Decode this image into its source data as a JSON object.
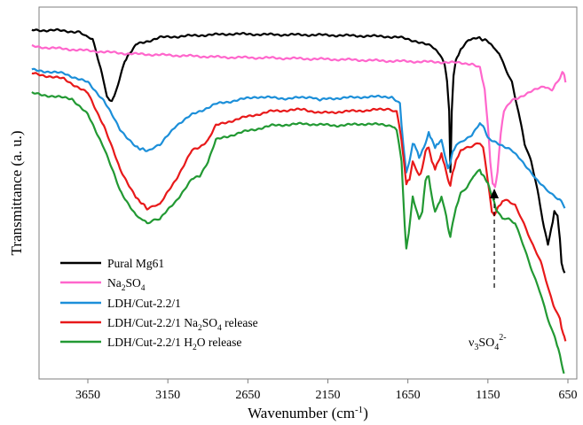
{
  "chart_data": {
    "type": "line",
    "title": "",
    "xlabel": "Wavenumber (cm⁻¹)",
    "ylabel": "Transmittance (a. u.)",
    "x_reversed": true,
    "xlim": [
      4000,
      600
    ],
    "ylim": [
      0,
      1
    ],
    "y_ticks_shown": false,
    "grid": false,
    "x_ticks": [
      3650,
      3150,
      2650,
      2150,
      1650,
      1150,
      650
    ],
    "legend_position": "bottom-left",
    "annotations": [
      {
        "text": "ν3SO42-",
        "type": "label"
      },
      {
        "type": "dashed-arrow",
        "x": 1110
      }
    ],
    "series": [
      {
        "name": "Pural Mg61",
        "color": "#000000",
        "points": [
          [
            4000,
            0.965
          ],
          [
            3850,
            0.965
          ],
          [
            3700,
            0.96
          ],
          [
            3620,
            0.94
          ],
          [
            3570,
            0.86
          ],
          [
            3530,
            0.78
          ],
          [
            3500,
            0.765
          ],
          [
            3470,
            0.8
          ],
          [
            3420,
            0.88
          ],
          [
            3350,
            0.925
          ],
          [
            3200,
            0.945
          ],
          [
            3000,
            0.95
          ],
          [
            2750,
            0.955
          ],
          [
            2500,
            0.953
          ],
          [
            2200,
            0.952
          ],
          [
            2000,
            0.95
          ],
          [
            1800,
            0.948
          ],
          [
            1700,
            0.945
          ],
          [
            1600,
            0.935
          ],
          [
            1500,
            0.92
          ],
          [
            1450,
            0.9
          ],
          [
            1420,
            0.87
          ],
          [
            1405,
            0.82
          ],
          [
            1392,
            0.74
          ],
          [
            1384,
            0.57
          ],
          [
            1376,
            0.74
          ],
          [
            1365,
            0.84
          ],
          [
            1350,
            0.88
          ],
          [
            1320,
            0.91
          ],
          [
            1270,
            0.94
          ],
          [
            1220,
            0.945
          ],
          [
            1150,
            0.935
          ],
          [
            1080,
            0.9
          ],
          [
            1000,
            0.82
          ],
          [
            950,
            0.72
          ],
          [
            920,
            0.65
          ],
          [
            880,
            0.6
          ],
          [
            840,
            0.52
          ],
          [
            800,
            0.42
          ],
          [
            775,
            0.37
          ],
          [
            755,
            0.41
          ],
          [
            735,
            0.46
          ],
          [
            715,
            0.45
          ],
          [
            700,
            0.38
          ],
          [
            690,
            0.32
          ],
          [
            680,
            0.3
          ],
          [
            670,
            0.29
          ]
        ]
      },
      {
        "name": "Na2SO4",
        "color": "#ff66cc",
        "points": [
          [
            4000,
            0.92
          ],
          [
            3700,
            0.91
          ],
          [
            3400,
            0.9
          ],
          [
            3100,
            0.895
          ],
          [
            2800,
            0.89
          ],
          [
            2500,
            0.888
          ],
          [
            2200,
            0.885
          ],
          [
            2000,
            0.883
          ],
          [
            1800,
            0.88
          ],
          [
            1600,
            0.878
          ],
          [
            1400,
            0.876
          ],
          [
            1250,
            0.872
          ],
          [
            1200,
            0.86
          ],
          [
            1170,
            0.8
          ],
          [
            1150,
            0.7
          ],
          [
            1135,
            0.6
          ],
          [
            1120,
            0.54
          ],
          [
            1105,
            0.53
          ],
          [
            1090,
            0.57
          ],
          [
            1070,
            0.68
          ],
          [
            1050,
            0.74
          ],
          [
            1000,
            0.77
          ],
          [
            950,
            0.78
          ],
          [
            900,
            0.79
          ],
          [
            850,
            0.8
          ],
          [
            800,
            0.81
          ],
          [
            750,
            0.8
          ],
          [
            720,
            0.82
          ],
          [
            700,
            0.83
          ],
          [
            685,
            0.85
          ],
          [
            672,
            0.84
          ],
          [
            665,
            0.82
          ]
        ]
      },
      {
        "name": "LDH/Cut-2.2/1",
        "color": "#1c8fd9",
        "points": [
          [
            4000,
            0.855
          ],
          [
            3800,
            0.845
          ],
          [
            3650,
            0.82
          ],
          [
            3550,
            0.77
          ],
          [
            3450,
            0.69
          ],
          [
            3350,
            0.64
          ],
          [
            3280,
            0.63
          ],
          [
            3200,
            0.645
          ],
          [
            3100,
            0.7
          ],
          [
            3000,
            0.73
          ],
          [
            2950,
            0.74
          ],
          [
            2900,
            0.75
          ],
          [
            2850,
            0.76
          ],
          [
            2600,
            0.78
          ],
          [
            2400,
            0.775
          ],
          [
            2250,
            0.78
          ],
          [
            2200,
            0.77
          ],
          [
            2150,
            0.775
          ],
          [
            1900,
            0.78
          ],
          [
            1750,
            0.78
          ],
          [
            1700,
            0.76
          ],
          [
            1680,
            0.65
          ],
          [
            1660,
            0.57
          ],
          [
            1640,
            0.6
          ],
          [
            1620,
            0.65
          ],
          [
            1600,
            0.64
          ],
          [
            1580,
            0.61
          ],
          [
            1560,
            0.63
          ],
          [
            1540,
            0.65
          ],
          [
            1520,
            0.68
          ],
          [
            1500,
            0.66
          ],
          [
            1480,
            0.64
          ],
          [
            1460,
            0.65
          ],
          [
            1440,
            0.66
          ],
          [
            1420,
            0.62
          ],
          [
            1400,
            0.58
          ],
          [
            1384,
            0.6
          ],
          [
            1370,
            0.63
          ],
          [
            1340,
            0.65
          ],
          [
            1300,
            0.66
          ],
          [
            1250,
            0.675
          ],
          [
            1200,
            0.705
          ],
          [
            1180,
            0.7
          ],
          [
            1150,
            0.665
          ],
          [
            1100,
            0.655
          ],
          [
            1050,
            0.64
          ],
          [
            1000,
            0.63
          ],
          [
            950,
            0.61
          ],
          [
            900,
            0.58
          ],
          [
            850,
            0.55
          ],
          [
            800,
            0.53
          ],
          [
            760,
            0.51
          ],
          [
            720,
            0.5
          ],
          [
            690,
            0.49
          ],
          [
            670,
            0.47
          ]
        ]
      },
      {
        "name": "LDH/Cut-2.2/1 Na2SO4 release",
        "color": "#e8191a",
        "points": [
          [
            4000,
            0.845
          ],
          [
            3800,
            0.83
          ],
          [
            3650,
            0.79
          ],
          [
            3550,
            0.7
          ],
          [
            3450,
            0.58
          ],
          [
            3350,
            0.5
          ],
          [
            3280,
            0.47
          ],
          [
            3200,
            0.48
          ],
          [
            3100,
            0.55
          ],
          [
            3000,
            0.63
          ],
          [
            2950,
            0.64
          ],
          [
            2900,
            0.66
          ],
          [
            2850,
            0.7
          ],
          [
            2700,
            0.72
          ],
          [
            2500,
            0.74
          ],
          [
            2300,
            0.745
          ],
          [
            2200,
            0.735
          ],
          [
            2000,
            0.74
          ],
          [
            1800,
            0.745
          ],
          [
            1720,
            0.74
          ],
          [
            1690,
            0.66
          ],
          [
            1660,
            0.54
          ],
          [
            1640,
            0.55
          ],
          [
            1620,
            0.6
          ],
          [
            1600,
            0.58
          ],
          [
            1580,
            0.56
          ],
          [
            1560,
            0.58
          ],
          [
            1540,
            0.63
          ],
          [
            1520,
            0.64
          ],
          [
            1500,
            0.6
          ],
          [
            1480,
            0.58
          ],
          [
            1460,
            0.6
          ],
          [
            1440,
            0.62
          ],
          [
            1420,
            0.59
          ],
          [
            1400,
            0.55
          ],
          [
            1385,
            0.53
          ],
          [
            1370,
            0.57
          ],
          [
            1350,
            0.6
          ],
          [
            1320,
            0.63
          ],
          [
            1280,
            0.64
          ],
          [
            1240,
            0.645
          ],
          [
            1200,
            0.65
          ],
          [
            1180,
            0.64
          ],
          [
            1160,
            0.58
          ],
          [
            1140,
            0.51
          ],
          [
            1125,
            0.46
          ],
          [
            1110,
            0.45
          ],
          [
            1090,
            0.47
          ],
          [
            1060,
            0.49
          ],
          [
            1020,
            0.49
          ],
          [
            980,
            0.48
          ],
          [
            940,
            0.44
          ],
          [
            900,
            0.4
          ],
          [
            860,
            0.36
          ],
          [
            820,
            0.32
          ],
          [
            780,
            0.26
          ],
          [
            740,
            0.2
          ],
          [
            700,
            0.16
          ],
          [
            680,
            0.12
          ],
          [
            665,
            0.1
          ]
        ]
      },
      {
        "name": "LDH/Cut-2.2/1 H2O release",
        "color": "#229933",
        "points": [
          [
            4000,
            0.79
          ],
          [
            3850,
            0.78
          ],
          [
            3750,
            0.775
          ],
          [
            3650,
            0.73
          ],
          [
            3550,
            0.64
          ],
          [
            3450,
            0.52
          ],
          [
            3350,
            0.45
          ],
          [
            3280,
            0.43
          ],
          [
            3200,
            0.44
          ],
          [
            3100,
            0.49
          ],
          [
            3000,
            0.55
          ],
          [
            2950,
            0.56
          ],
          [
            2900,
            0.6
          ],
          [
            2850,
            0.66
          ],
          [
            2700,
            0.68
          ],
          [
            2500,
            0.7
          ],
          [
            2300,
            0.705
          ],
          [
            2100,
            0.7
          ],
          [
            1900,
            0.705
          ],
          [
            1750,
            0.7
          ],
          [
            1720,
            0.69
          ],
          [
            1690,
            0.6
          ],
          [
            1670,
            0.42
          ],
          [
            1660,
            0.36
          ],
          [
            1645,
            0.4
          ],
          [
            1620,
            0.5
          ],
          [
            1600,
            0.47
          ],
          [
            1580,
            0.44
          ],
          [
            1560,
            0.46
          ],
          [
            1540,
            0.55
          ],
          [
            1520,
            0.56
          ],
          [
            1500,
            0.5
          ],
          [
            1480,
            0.46
          ],
          [
            1460,
            0.48
          ],
          [
            1440,
            0.5
          ],
          [
            1420,
            0.47
          ],
          [
            1400,
            0.42
          ],
          [
            1385,
            0.39
          ],
          [
            1370,
            0.43
          ],
          [
            1350,
            0.47
          ],
          [
            1320,
            0.51
          ],
          [
            1280,
            0.53
          ],
          [
            1240,
            0.56
          ],
          [
            1200,
            0.575
          ],
          [
            1180,
            0.56
          ],
          [
            1150,
            0.54
          ],
          [
            1120,
            0.5
          ],
          [
            1100,
            0.47
          ],
          [
            1060,
            0.44
          ],
          [
            1020,
            0.44
          ],
          [
            980,
            0.43
          ],
          [
            940,
            0.38
          ],
          [
            900,
            0.33
          ],
          [
            860,
            0.28
          ],
          [
            820,
            0.23
          ],
          [
            780,
            0.17
          ],
          [
            740,
            0.12
          ],
          [
            710,
            0.08
          ],
          [
            690,
            0.04
          ],
          [
            675,
            0.01
          ]
        ]
      }
    ]
  },
  "legend": {
    "items": [
      {
        "label": "Pural Mg61",
        "sub": null
      },
      {
        "label": "Na",
        "sub": "2",
        "tail": "SO",
        "sub2": "4"
      },
      {
        "label": "LDH/Cut-2.2/1"
      },
      {
        "label": "LDH/Cut-2.2/1 Na",
        "sub": "2",
        "tail": "SO",
        "sub2": "4",
        "tail2": " release"
      },
      {
        "label": "LDH/Cut-2.2/1 H",
        "sub": "2",
        "tail": "O release"
      }
    ]
  },
  "axis_title_x": "Wavenumber (cm",
  "axis_title_x_sup": "-1",
  "axis_title_x_end": ")",
  "axis_title_y": "Transmittance (a. u.)",
  "annotation_label": {
    "v": "ν",
    "sub": "3",
    "mid": "SO",
    "sub2": "4",
    "sup": "2-"
  }
}
